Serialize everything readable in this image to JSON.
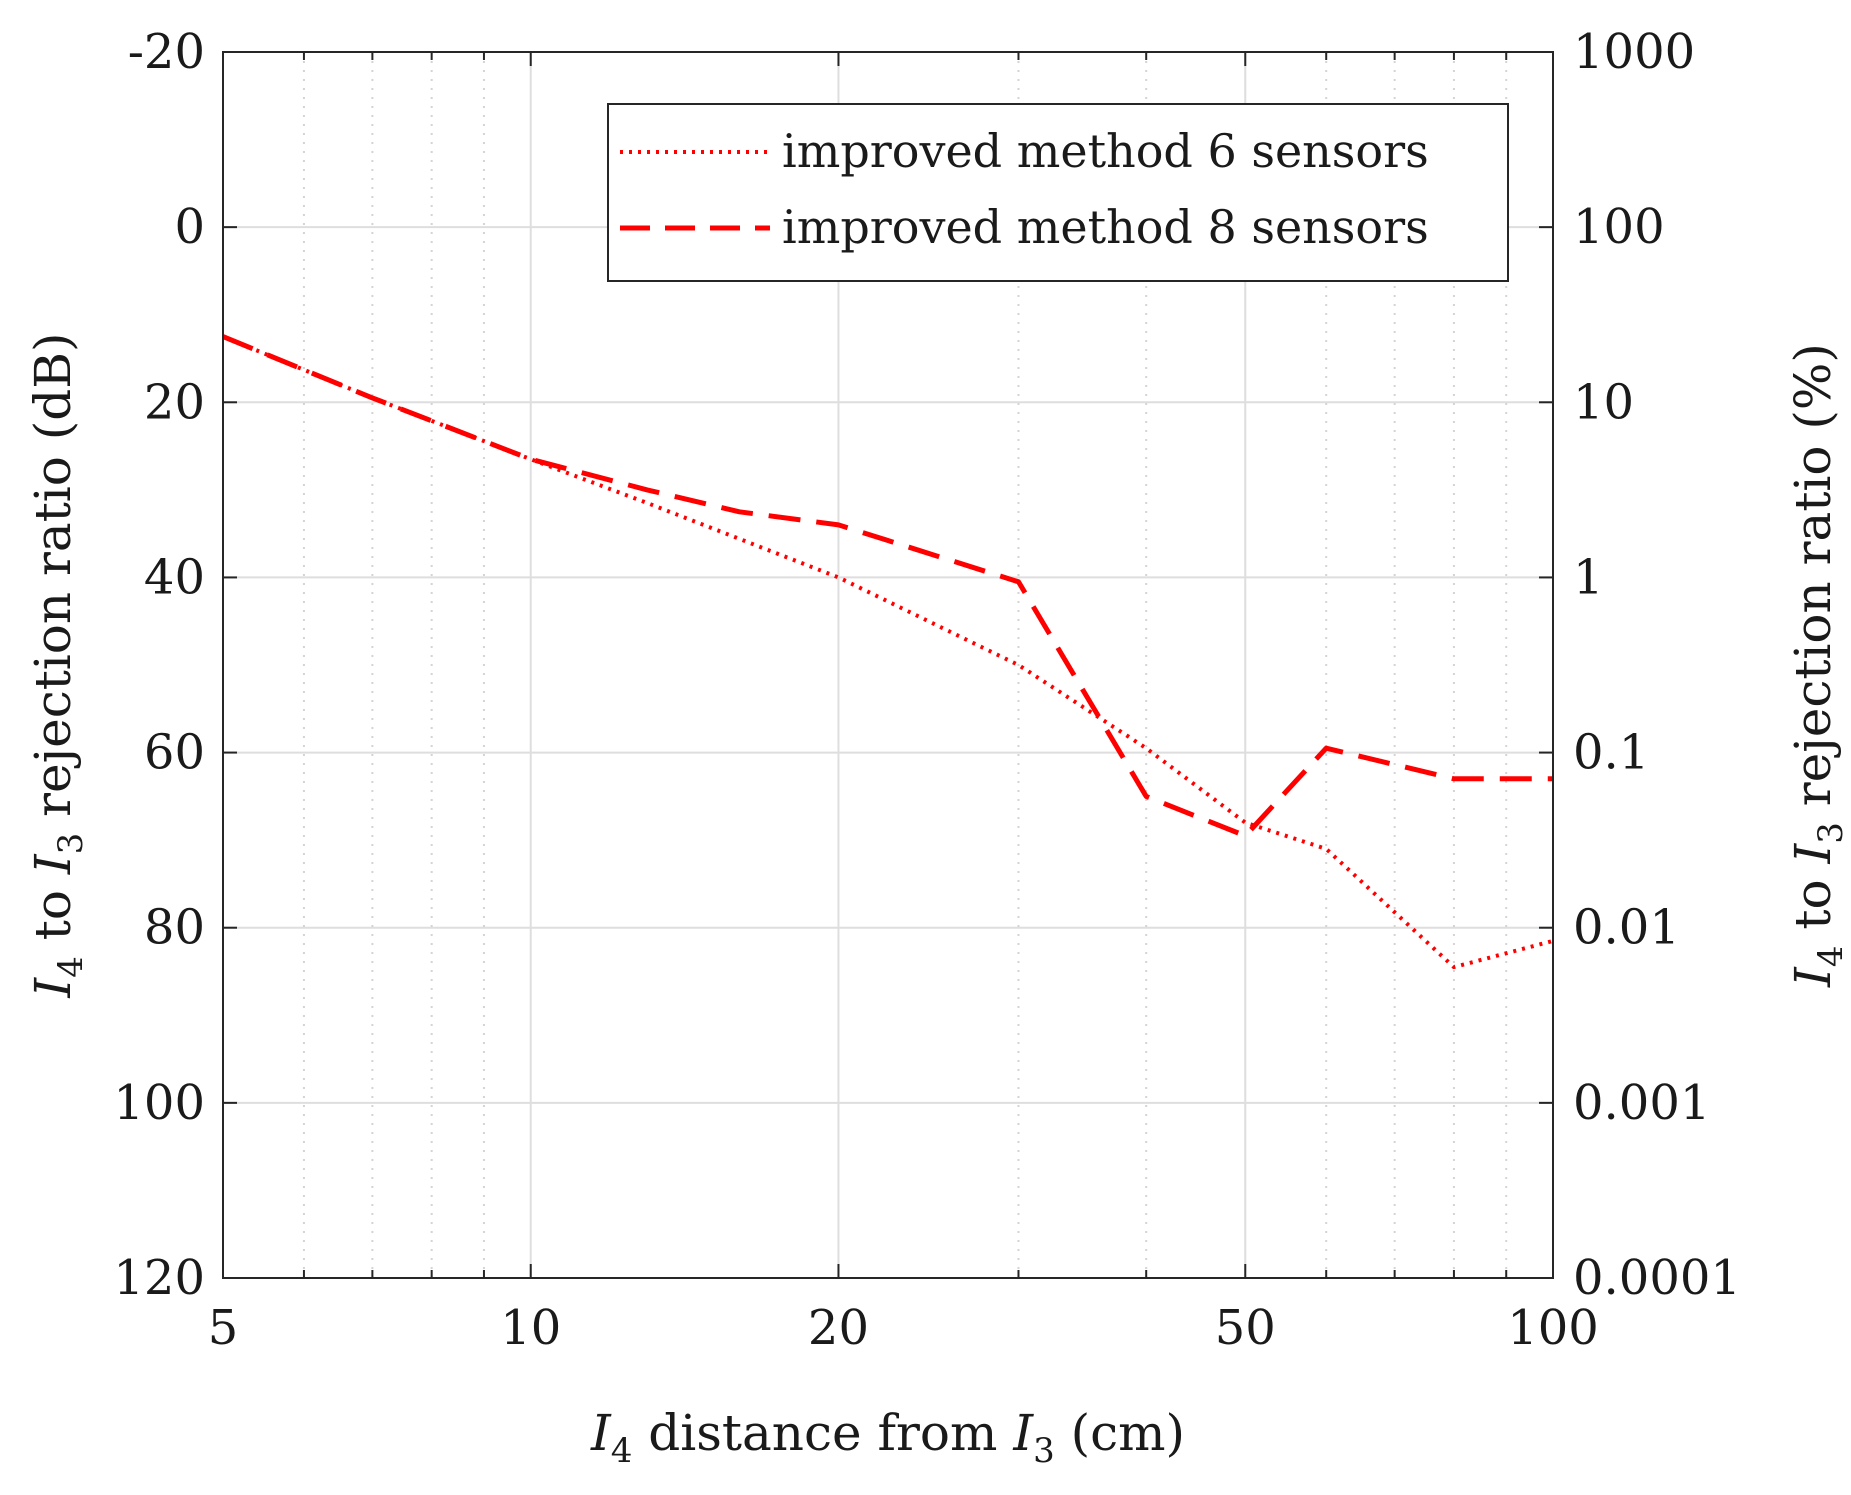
{
  "chart_data": {
    "type": "line",
    "title": "",
    "xlabel": {
      "prefix": "I",
      "prefix_sub": "4",
      "middle": " distance from ",
      "var": "I",
      "var_sub": "3",
      "suffix": " (cm)"
    },
    "ylabel_left": {
      "prefix": "I",
      "prefix_sub": "4",
      "middle": " to ",
      "var": "I",
      "var_sub": "3",
      "suffix": " rejection ratio (dB)"
    },
    "ylabel_right": {
      "prefix": "I",
      "prefix_sub": "4",
      "middle": " to ",
      "var": "I",
      "var_sub": "3",
      "suffix": " rejection ratio (%)"
    },
    "x_scale": "log",
    "xlim": [
      5,
      100
    ],
    "ylim_left": [
      -20,
      120
    ],
    "y_left_reversed": true,
    "x_ticks": [
      5,
      10,
      20,
      50,
      100
    ],
    "x_tick_labels": [
      "5",
      "10",
      "20",
      "50",
      "100"
    ],
    "x_minor_ticks": [
      6,
      7,
      8,
      9,
      30,
      40,
      60,
      70,
      80,
      90
    ],
    "y_left_ticks": [
      -20,
      0,
      20,
      40,
      60,
      80,
      100,
      120
    ],
    "y_left_tick_labels": [
      "-20",
      "0",
      "20",
      "40",
      "60",
      "80",
      "100",
      "120"
    ],
    "y_right_ticks_db": [
      -20,
      0,
      20,
      40,
      60,
      80,
      100,
      120
    ],
    "y_right_tick_labels": [
      "1000",
      "100",
      "10",
      "1",
      "0.1",
      "0.01",
      "0.001",
      "0.0001"
    ],
    "grid": true,
    "legend_position": "top-right",
    "series": [
      {
        "name": "improved method 6 sensors",
        "style": "dotted",
        "color": "#ff0000",
        "x": [
          5,
          7,
          10,
          13,
          20,
          30,
          40,
          50,
          60,
          80,
          100
        ],
        "y": [
          12.5,
          19.5,
          26.5,
          31.5,
          40,
          50,
          59.5,
          68,
          71,
          84.5,
          81.5
        ]
      },
      {
        "name": "improved method 8 sensors",
        "style": "dashed",
        "color": "#ff0000",
        "x": [
          5,
          7,
          10,
          13,
          16,
          20,
          30,
          40,
          50,
          60,
          80,
          100
        ],
        "y": [
          12.5,
          19.5,
          26.5,
          30,
          32.5,
          34,
          40.5,
          65,
          69.5,
          59.5,
          63,
          63
        ]
      }
    ]
  }
}
